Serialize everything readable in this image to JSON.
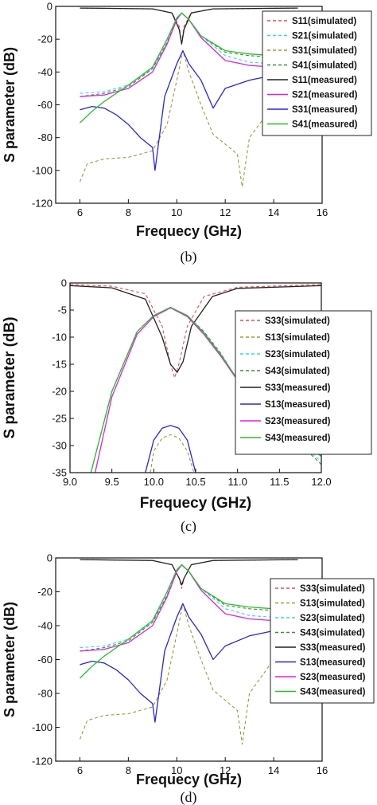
{
  "colors": {
    "s11_sim": "#e05050",
    "s21_sim": "#33d6e6",
    "s31_sim": "#9c9c3c",
    "s41_sim": "#3c8c3c",
    "s11_meas": "#222222",
    "s21_meas": "#e020e0",
    "s31_meas": "#2626e0",
    "s41_meas": "#28c028"
  },
  "chart_data": [
    {
      "type": "line",
      "caption": "(b)",
      "xlabel": "Frequecy  (GHz)",
      "ylabel": "S  parameter (dB)",
      "xlim": [
        5,
        16
      ],
      "ylim": [
        -120,
        0
      ],
      "xticks": [
        6,
        8,
        10,
        12,
        14,
        16
      ],
      "yticks": [
        0,
        -20,
        -40,
        -60,
        -80,
        -100,
        -120
      ],
      "legend": "top-right",
      "series": [
        {
          "name": "S11(simulated)",
          "style": "dashed",
          "color": "#e05050",
          "x": [
            6,
            9,
            9.8,
            10.1,
            10.2,
            10.3,
            10.6,
            11.5,
            15
          ],
          "y": [
            -1,
            -1.5,
            -4,
            -12,
            -22,
            -12,
            -4,
            -1.5,
            -1
          ]
        },
        {
          "name": "S21(simulated)",
          "style": "dashed",
          "color": "#33d6e6",
          "x": [
            6,
            7,
            8,
            9,
            9.6,
            10,
            10.2,
            10.5,
            11,
            12,
            13,
            14,
            15
          ],
          "y": [
            -53,
            -52,
            -48,
            -38,
            -22,
            -8,
            -4,
            -8,
            -18,
            -30,
            -34,
            -35,
            -34
          ]
        },
        {
          "name": "S31(simulated)",
          "style": "dashed",
          "color": "#9c9c3c",
          "x": [
            6,
            6.3,
            7,
            8,
            9,
            9.6,
            10,
            10.25,
            10.5,
            11,
            11.5,
            12,
            12.5,
            12.7,
            13,
            14,
            15
          ],
          "y": [
            -107,
            -96,
            -93,
            -92,
            -88,
            -72,
            -45,
            -27,
            -40,
            -60,
            -78,
            -84,
            -90,
            -110,
            -80,
            -60,
            -45
          ]
        },
        {
          "name": "S41(simulated)",
          "style": "dashed",
          "color": "#3c8c3c",
          "x": [
            6,
            7,
            8,
            9,
            9.6,
            10,
            10.2,
            10.5,
            11,
            12,
            13,
            14,
            15
          ],
          "y": [
            -55,
            -53,
            -49,
            -38,
            -22,
            -8,
            -4,
            -8,
            -18,
            -28,
            -30,
            -31,
            -30
          ]
        },
        {
          "name": "S11(measured)",
          "style": "solid",
          "color": "#222222",
          "x": [
            6,
            9,
            9.8,
            10.1,
            10.2,
            10.3,
            10.6,
            11.5,
            15
          ],
          "y": [
            -1,
            -1.5,
            -4,
            -14,
            -23,
            -14,
            -4,
            -1.5,
            -1
          ]
        },
        {
          "name": "S21(measured)",
          "style": "solid",
          "color": "#e020e0",
          "x": [
            6,
            7,
            8,
            9,
            9.6,
            10,
            10.2,
            10.5,
            11,
            12,
            13,
            14,
            15
          ],
          "y": [
            -55,
            -54,
            -50,
            -40,
            -23,
            -8,
            -4,
            -8,
            -19,
            -33,
            -36,
            -37,
            -36
          ]
        },
        {
          "name": "S31(measured)",
          "style": "solid",
          "color": "#2626e0",
          "x": [
            6,
            6.5,
            7,
            7.5,
            8,
            8.5,
            9,
            9.1,
            9.5,
            10,
            10.25,
            10.5,
            11,
            11.5,
            12,
            13,
            14,
            15
          ],
          "y": [
            -63,
            -61,
            -62,
            -66,
            -72,
            -80,
            -86,
            -100,
            -55,
            -35,
            -27,
            -35,
            -45,
            -62,
            -50,
            -45,
            -42,
            -40
          ]
        },
        {
          "name": "S41(measured)",
          "style": "solid",
          "color": "#28c028",
          "x": [
            6,
            6.5,
            7,
            8,
            9,
            9.6,
            10,
            10.2,
            10.5,
            11,
            12,
            13,
            14,
            15
          ],
          "y": [
            -71,
            -64,
            -58,
            -48,
            -37,
            -20,
            -7,
            -4,
            -8,
            -18,
            -27,
            -29,
            -30,
            -30
          ]
        }
      ]
    },
    {
      "type": "line",
      "caption": "(c)",
      "xlabel": "Frequecy  (GHz)",
      "ylabel": "S  parameter (dB)",
      "xlim": [
        9.0,
        12.0
      ],
      "ylim": [
        -35,
        0
      ],
      "xticks": [
        9.0,
        9.5,
        10.0,
        10.5,
        11.0,
        11.5,
        12.0
      ],
      "yticks": [
        0,
        -5,
        -10,
        -15,
        -20,
        -25,
        -30,
        -35
      ],
      "legend": "right",
      "series": [
        {
          "name": "S33(simulated)",
          "style": "dashed",
          "color": "#e05050",
          "x": [
            9,
            9.5,
            9.9,
            10.1,
            10.2,
            10.25,
            10.3,
            10.4,
            10.6,
            11,
            12
          ],
          "y": [
            -0.3,
            -0.6,
            -2,
            -8,
            -15,
            -17.5,
            -15,
            -8,
            -2.5,
            -0.8,
            -0.3
          ]
        },
        {
          "name": "S13(simulated)",
          "style": "dashed",
          "color": "#9c9c3c",
          "x": [
            9.96,
            10.0,
            10.1,
            10.2,
            10.3,
            10.4,
            10.48
          ],
          "y": [
            -35,
            -31,
            -28.6,
            -28,
            -28.6,
            -31,
            -35
          ]
        },
        {
          "name": "S23(simulated)",
          "style": "dashed",
          "color": "#33d6e6",
          "x": [
            9.25,
            9.5,
            9.8,
            10,
            10.2,
            10.4,
            10.6,
            10.8,
            11,
            11.5,
            12
          ],
          "y": [
            -35,
            -20,
            -9,
            -6,
            -4.6,
            -6,
            -9,
            -13,
            -18,
            -26,
            -33
          ]
        },
        {
          "name": "S43(simulated)",
          "style": "dashed",
          "color": "#3c8c3c",
          "x": [
            9.25,
            9.5,
            9.8,
            10,
            10.2,
            10.4,
            10.6,
            10.8,
            11,
            11.5,
            12
          ],
          "y": [
            -35,
            -20,
            -9,
            -6,
            -4.6,
            -6,
            -9,
            -13,
            -18,
            -26,
            -33.5
          ]
        },
        {
          "name": "S33(measured)",
          "style": "solid",
          "color": "#222222",
          "x": [
            9,
            9.5,
            9.9,
            10.1,
            10.2,
            10.28,
            10.35,
            10.45,
            10.7,
            11,
            12
          ],
          "y": [
            -0.5,
            -0.9,
            -3,
            -10,
            -15,
            -16.5,
            -14.5,
            -8,
            -2.5,
            -1,
            -0.5
          ]
        },
        {
          "name": "S13(measured)",
          "style": "solid",
          "color": "#2626e0",
          "x": [
            9.9,
            10.0,
            10.1,
            10.2,
            10.3,
            10.4,
            10.5
          ],
          "y": [
            -35,
            -29,
            -26.8,
            -26.3,
            -26.8,
            -29,
            -35
          ]
        },
        {
          "name": "S23(measured)",
          "style": "solid",
          "color": "#e020e0",
          "x": [
            9.3,
            9.5,
            9.8,
            10,
            10.2,
            10.4,
            10.6,
            10.8,
            11,
            11.5,
            12
          ],
          "y": [
            -35,
            -21,
            -9.5,
            -6.2,
            -4.6,
            -6.2,
            -9.5,
            -13.5,
            -18,
            -26,
            -31
          ]
        },
        {
          "name": "S43(measured)",
          "style": "solid",
          "color": "#28c028",
          "x": [
            9.25,
            9.5,
            9.8,
            10,
            10.2,
            10.4,
            10.6,
            10.8,
            11,
            11.5,
            12
          ],
          "y": [
            -35,
            -20,
            -9,
            -6,
            -4.5,
            -6,
            -9.2,
            -13.2,
            -17.8,
            -26,
            -32
          ]
        }
      ]
    },
    {
      "type": "line",
      "caption": "(d)",
      "xlabel": "Frequecy  (GHz)",
      "ylabel": "S  parameter (dB)",
      "xlim": [
        5,
        16
      ],
      "ylim": [
        -120,
        0
      ],
      "xticks": [
        6,
        8,
        10,
        12,
        14,
        16
      ],
      "yticks": [
        0,
        -20,
        -40,
        -60,
        -80,
        -100,
        -120
      ],
      "legend": "right",
      "series": [
        {
          "name": "S33(simulated)",
          "style": "dashed",
          "color": "#e05050",
          "x": [
            6,
            9,
            9.8,
            10.1,
            10.2,
            10.3,
            10.6,
            11.5,
            15
          ],
          "y": [
            -1,
            -1.5,
            -4,
            -12,
            -18,
            -12,
            -4,
            -1.5,
            -1
          ]
        },
        {
          "name": "S13(simulated)",
          "style": "dashed",
          "color": "#9c9c3c",
          "x": [
            6,
            6.3,
            7,
            8,
            9,
            9.6,
            10,
            10.25,
            10.5,
            11,
            11.5,
            12,
            12.5,
            12.7,
            13,
            14,
            15
          ],
          "y": [
            -107,
            -96,
            -93,
            -92,
            -88,
            -72,
            -45,
            -27,
            -40,
            -60,
            -78,
            -84,
            -90,
            -110,
            -80,
            -60,
            -45
          ]
        },
        {
          "name": "S23(simulated)",
          "style": "dashed",
          "color": "#33d6e6",
          "x": [
            6,
            7,
            8,
            9,
            9.6,
            10,
            10.2,
            10.5,
            11,
            12,
            13,
            14,
            15
          ],
          "y": [
            -53,
            -52,
            -48,
            -38,
            -22,
            -8,
            -4,
            -8,
            -18,
            -30,
            -34,
            -35,
            -34
          ]
        },
        {
          "name": "S43(simulated)",
          "style": "dashed",
          "color": "#3c8c3c",
          "x": [
            6,
            7,
            8,
            9,
            9.6,
            10,
            10.2,
            10.5,
            11,
            12,
            13,
            14,
            15
          ],
          "y": [
            -55,
            -53,
            -49,
            -38,
            -22,
            -8,
            -4,
            -8,
            -18,
            -28,
            -30,
            -31,
            -30
          ]
        },
        {
          "name": "S33(measured)",
          "style": "solid",
          "color": "#222222",
          "x": [
            6,
            9,
            9.8,
            10.1,
            10.2,
            10.3,
            10.6,
            11.5,
            15
          ],
          "y": [
            -1,
            -1.5,
            -4,
            -12,
            -16,
            -12,
            -4,
            -1.5,
            -1
          ]
        },
        {
          "name": "S13(measured)",
          "style": "solid",
          "color": "#2626e0",
          "x": [
            6,
            6.5,
            7,
            7.5,
            8,
            8.5,
            9,
            9.1,
            9.5,
            10,
            10.25,
            10.5,
            11,
            11.5,
            12,
            13,
            14,
            15
          ],
          "y": [
            -63,
            -61,
            -62,
            -66,
            -72,
            -80,
            -86,
            -97,
            -55,
            -35,
            -27,
            -35,
            -45,
            -60,
            -52,
            -46,
            -43,
            -41
          ]
        },
        {
          "name": "S23(measured)",
          "style": "solid",
          "color": "#e020e0",
          "x": [
            6,
            7,
            8,
            9,
            9.6,
            10,
            10.2,
            10.5,
            11,
            12,
            13,
            14,
            15
          ],
          "y": [
            -55,
            -54,
            -50,
            -40,
            -23,
            -8,
            -4,
            -8,
            -19,
            -33,
            -36,
            -37,
            -36
          ]
        },
        {
          "name": "S43(measured)",
          "style": "solid",
          "color": "#28c028",
          "x": [
            6,
            6.5,
            7,
            8,
            9,
            9.6,
            10,
            10.2,
            10.5,
            11,
            12,
            13,
            14,
            15
          ],
          "y": [
            -71,
            -64,
            -58,
            -48,
            -37,
            -20,
            -7,
            -4,
            -8,
            -18,
            -27,
            -29,
            -30,
            -30
          ]
        }
      ]
    }
  ]
}
